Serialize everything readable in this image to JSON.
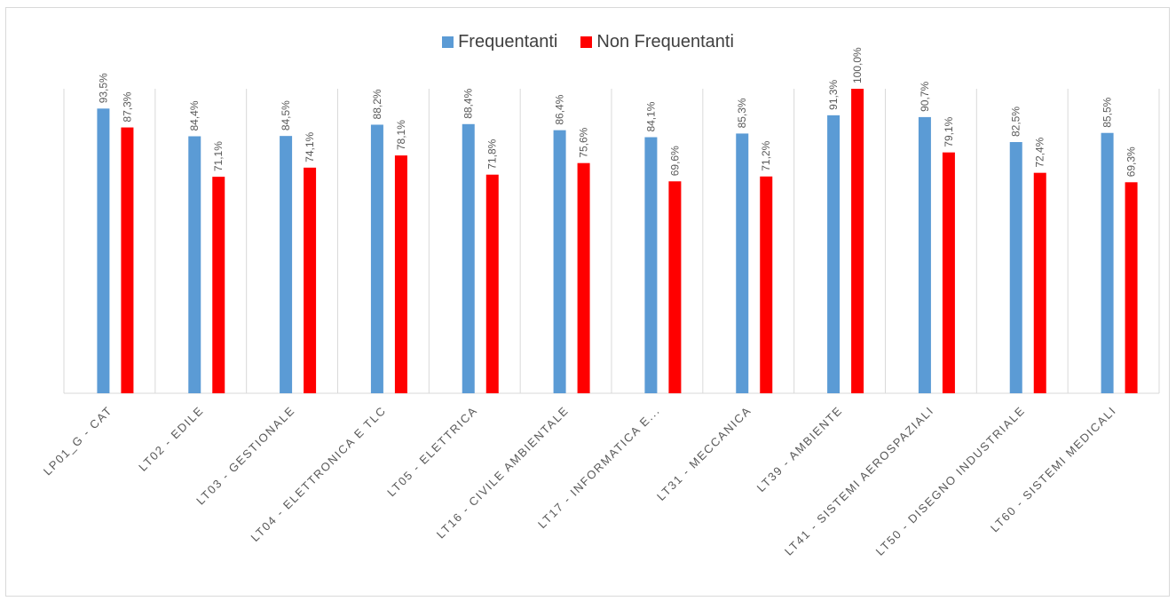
{
  "chart_data": {
    "type": "bar",
    "categories": [
      "LP01_G - CAT",
      "LT02 - EDILE",
      "LT03 - GESTIONALE",
      "LT04 - ELETTRONICA E TLC",
      "LT05 - ELETTRICA",
      "LT16 - CIVILE AMBIENTALE",
      "LT17 - INFORMATICA E...",
      "LT31 - MECCANICA",
      "LT39 - AMBIENTE",
      "LT41 - SISTEMI AEROSPAZIALI",
      "LT50 - DISEGNO INDUSTRIALE",
      "LT60 - SISTEMI MEDICALI"
    ],
    "series": [
      {
        "name": "Frequentanti",
        "color": "#5b9bd5",
        "values": [
          93.5,
          84.4,
          84.5,
          88.2,
          88.4,
          86.4,
          84.1,
          85.3,
          91.3,
          90.7,
          82.5,
          85.5
        ],
        "labels": [
          "93,5%",
          "84,4%",
          "84,5%",
          "88,2%",
          "88,4%",
          "86,4%",
          "84,1%",
          "85,3%",
          "91,3%",
          "90,7%",
          "82,5%",
          "85,5%"
        ]
      },
      {
        "name": "Non Frequentanti",
        "color": "#ff0000",
        "values": [
          87.3,
          71.1,
          74.1,
          78.1,
          71.8,
          75.6,
          69.6,
          71.2,
          100.0,
          79.1,
          72.4,
          69.3
        ],
        "labels": [
          "87,3%",
          "71,1%",
          "74,1%",
          "78,1%",
          "71,8%",
          "75,6%",
          "69,6%",
          "71,2%",
          "100,0%",
          "79,1%",
          "72,4%",
          "69,3%"
        ]
      }
    ],
    "ylim": [
      0,
      100
    ],
    "title": "",
    "xlabel": "",
    "ylabel": "",
    "legend": "top-center",
    "grid": "vertical separators"
  }
}
